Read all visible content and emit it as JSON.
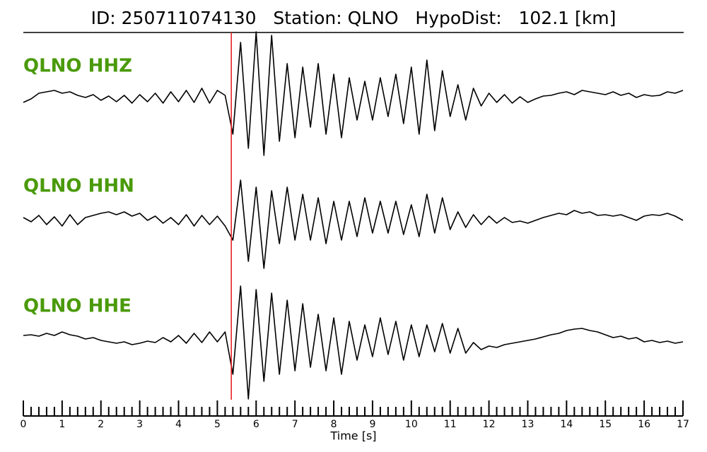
{
  "chart_data": {
    "type": "seismogram",
    "title": "ID: 250711074130   Station: QLNO   HypoDist:   102.1 [km]",
    "xlabel": "Time [s]",
    "xlim": [
      0,
      17
    ],
    "xticks": [
      0,
      1,
      2,
      3,
      4,
      5,
      6,
      7,
      8,
      9,
      10,
      11,
      12,
      13,
      14,
      15,
      16,
      17
    ],
    "xminor": 5,
    "ylim": [
      -1,
      1
    ],
    "pick_time": 5.36,
    "pick_color": "#e8141c",
    "label_color": "#4a9a0a",
    "x": [
      0,
      0.2,
      0.4,
      0.6,
      0.8,
      1,
      1.2,
      1.4,
      1.6,
      1.8,
      2,
      2.2,
      2.4,
      2.6,
      2.8,
      3,
      3.2,
      3.4,
      3.6,
      3.8,
      4,
      4.2,
      4.4,
      4.6,
      4.8,
      5,
      5.2,
      5.4,
      5.6,
      5.8,
      6,
      6.2,
      6.4,
      6.6,
      6.8,
      7,
      7.2,
      7.4,
      7.6,
      7.8,
      8,
      8.2,
      8.4,
      8.6,
      8.8,
      9,
      9.2,
      9.4,
      9.6,
      9.8,
      10,
      10.2,
      10.4,
      10.6,
      10.8,
      11,
      11.2,
      11.4,
      11.6,
      11.8,
      12,
      12.2,
      12.4,
      12.6,
      12.8,
      13,
      13.2,
      13.4,
      13.6,
      13.8,
      14,
      14.2,
      14.4,
      14.6,
      14.8,
      15,
      15.2,
      15.4,
      15.6,
      15.8,
      16,
      16.2,
      16.4,
      16.6,
      16.8,
      17
    ],
    "series": [
      {
        "name": "QLNO HHZ",
        "color": "#000000",
        "values": [
          -0.05,
          0,
          0.08,
          0.1,
          0.12,
          0.08,
          0.1,
          0.05,
          0.02,
          0.06,
          -0.02,
          0.04,
          -0.04,
          0.05,
          -0.06,
          0.06,
          -0.04,
          0.08,
          -0.06,
          0.1,
          -0.04,
          0.12,
          -0.05,
          0.15,
          -0.06,
          0.12,
          0.05,
          -0.5,
          0.8,
          -0.7,
          0.95,
          -0.8,
          0.9,
          -0.6,
          0.5,
          -0.55,
          0.45,
          -0.4,
          0.5,
          -0.5,
          0.35,
          -0.55,
          0.3,
          -0.3,
          0.25,
          -0.3,
          0.3,
          -0.25,
          0.35,
          -0.35,
          0.45,
          -0.5,
          0.55,
          -0.45,
          0.4,
          -0.25,
          0.2,
          -0.3,
          0.15,
          -0.1,
          0.08,
          -0.05,
          0.06,
          -0.06,
          0.03,
          -0.05,
          0,
          0.04,
          0.05,
          0.08,
          0.1,
          0.06,
          0.12,
          0.1,
          0.08,
          0.06,
          0.1,
          0.05,
          0.08,
          0.02,
          0.06,
          0.04,
          0.05,
          0.1,
          0.08,
          0.12
        ]
      },
      {
        "name": "QLNO HHN",
        "color": "#000000",
        "values": [
          0.02,
          -0.04,
          0.05,
          -0.08,
          0.03,
          -0.1,
          0.06,
          -0.08,
          0.02,
          0.05,
          0.08,
          0.1,
          0.06,
          0.1,
          0.04,
          0.08,
          -0.02,
          0.04,
          -0.06,
          0.02,
          -0.08,
          0.06,
          -0.1,
          0.05,
          -0.08,
          0.04,
          -0.1,
          -0.3,
          0.55,
          -0.6,
          0.45,
          -0.7,
          0.4,
          -0.35,
          0.45,
          -0.3,
          0.35,
          -0.3,
          0.3,
          -0.35,
          0.25,
          -0.3,
          0.25,
          -0.25,
          0.3,
          -0.2,
          0.25,
          -0.2,
          0.25,
          -0.22,
          0.2,
          -0.25,
          0.35,
          -0.2,
          0.3,
          -0.15,
          0.1,
          -0.12,
          0.06,
          -0.08,
          0.04,
          -0.06,
          0.02,
          -0.05,
          -0.03,
          -0.06,
          -0.02,
          0.02,
          0.05,
          0.08,
          0.06,
          0.12,
          0.08,
          0.1,
          0.05,
          0.06,
          0.04,
          0.06,
          0.02,
          -0.02,
          0.04,
          0.06,
          0.05,
          0.08,
          0.04,
          -0.02
        ]
      },
      {
        "name": "QLNO HHE",
        "color": "#000000",
        "values": [
          0.05,
          0.06,
          0.04,
          0.08,
          0.05,
          0.1,
          0.06,
          0.04,
          0,
          0.02,
          -0.02,
          -0.04,
          -0.06,
          -0.04,
          -0.08,
          -0.06,
          -0.03,
          -0.05,
          0.02,
          -0.04,
          0.05,
          -0.06,
          0.08,
          -0.05,
          0.1,
          -0.04,
          0.1,
          -0.5,
          0.75,
          -0.85,
          0.7,
          -0.6,
          0.65,
          -0.5,
          0.55,
          -0.45,
          0.5,
          -0.4,
          0.35,
          -0.45,
          0.3,
          -0.5,
          0.25,
          -0.3,
          0.2,
          -0.25,
          0.3,
          -0.22,
          0.25,
          -0.3,
          0.2,
          -0.25,
          0.2,
          -0.18,
          0.22,
          -0.2,
          0.15,
          -0.2,
          -0.05,
          -0.15,
          -0.1,
          -0.12,
          -0.08,
          -0.06,
          -0.04,
          -0.02,
          0,
          0.03,
          0.06,
          0.08,
          0.12,
          0.14,
          0.15,
          0.12,
          0.1,
          0.06,
          0.02,
          0.04,
          0,
          0.02,
          -0.04,
          -0.02,
          -0.05,
          -0.03,
          -0.06,
          -0.04
        ]
      }
    ]
  }
}
